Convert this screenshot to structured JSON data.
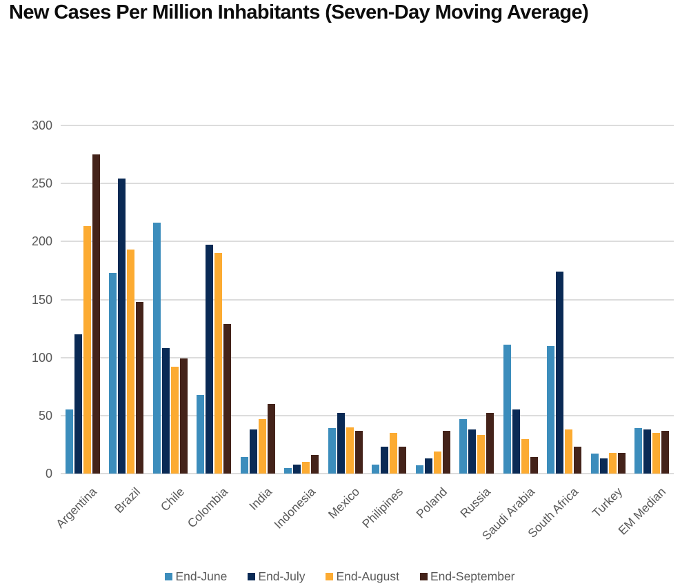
{
  "page": {
    "background": "#ffffff"
  },
  "colors": {
    "title_text": "#0c0c0c",
    "axis_text": "#595959",
    "gridline": "#dcdcdc",
    "end_june": "#3c8dbc",
    "end_july": "#0a2a55",
    "end_august": "#fcab32",
    "end_september": "#44231a"
  },
  "chart_data": {
    "type": "bar",
    "title": "New Cases Per Million Inhabitants (Seven-Day Moving Average)",
    "xlabel": "",
    "ylabel": "",
    "ylim": [
      0,
      300
    ],
    "yticks": [
      0,
      50,
      100,
      150,
      200,
      250,
      300
    ],
    "grid": true,
    "legend_position": "bottom",
    "categories": [
      "Argentina",
      "Brazil",
      "Chile",
      "Colombia",
      "India",
      "Indonesia",
      "Mexico",
      "Philipines",
      "Poland",
      "Russia",
      "Saudi Arabia",
      "South Africa",
      "Turkey",
      "EM Median"
    ],
    "series": [
      {
        "name": "End-June",
        "color": "#3c8dbc",
        "values": [
          55,
          173,
          216,
          68,
          14,
          5,
          39,
          8,
          7,
          47,
          111,
          110,
          17,
          39
        ]
      },
      {
        "name": "End-July",
        "color": "#0a2a55",
        "values": [
          120,
          254,
          108,
          197,
          38,
          8,
          52,
          23,
          13,
          38,
          55,
          174,
          13,
          38
        ]
      },
      {
        "name": "End-August",
        "color": "#fcab32",
        "values": [
          213,
          193,
          92,
          190,
          47,
          10,
          40,
          35,
          19,
          33,
          30,
          38,
          18,
          35
        ]
      },
      {
        "name": "End-September",
        "color": "#44231a",
        "values": [
          275,
          148,
          99,
          129,
          60,
          16,
          37,
          23,
          37,
          52,
          14,
          23,
          18,
          37
        ]
      }
    ]
  }
}
